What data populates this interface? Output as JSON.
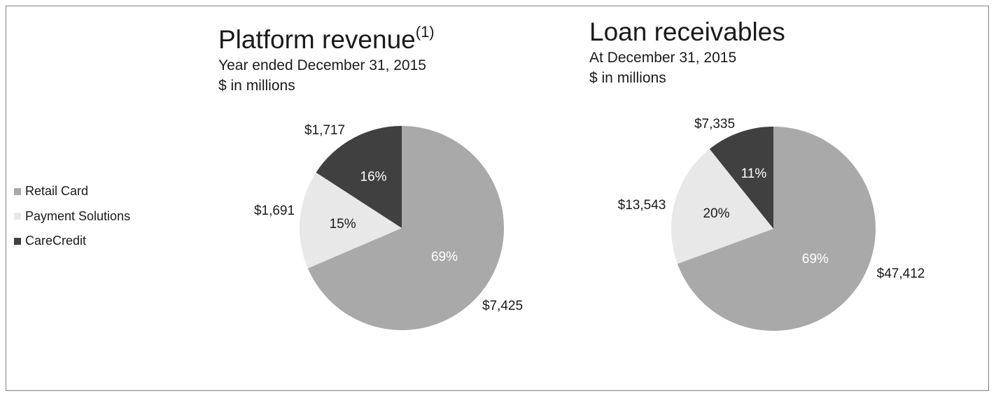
{
  "colors": {
    "retail_card": "#a9a9a9",
    "payment_solutions": "#e8e8e8",
    "carecredit": "#404040"
  },
  "legend": [
    {
      "label": "Retail Card",
      "color": "#a9a9a9"
    },
    {
      "label": "Payment Solutions",
      "color": "#e8e8e8"
    },
    {
      "label": "CareCredit",
      "color": "#404040"
    }
  ],
  "chart_data": [
    {
      "type": "pie",
      "title": "Platform revenue",
      "title_sup": "(1)",
      "subtitle": "Year ended December 31, 2015",
      "units": "$ in millions",
      "slices": [
        {
          "name": "Retail Card",
          "value": 7425,
          "value_label": "$7,425",
          "pct_label": "69%",
          "color": "#a9a9a9"
        },
        {
          "name": "Payment Solutions",
          "value": 1691,
          "value_label": "$1,691",
          "pct_label": "15%",
          "color": "#e8e8e8"
        },
        {
          "name": "CareCredit",
          "value": 1717,
          "value_label": "$1,717",
          "pct_label": "16%",
          "color": "#404040"
        }
      ]
    },
    {
      "type": "pie",
      "title": "Loan receivables",
      "subtitle": "At December 31, 2015",
      "units": "$ in millions",
      "slices": [
        {
          "name": "Retail Card",
          "value": 47412,
          "value_label": "$47,412",
          "pct_label": "69%",
          "color": "#a9a9a9"
        },
        {
          "name": "Payment Solutions",
          "value": 13543,
          "value_label": "$13,543",
          "pct_label": "20%",
          "color": "#e8e8e8"
        },
        {
          "name": "CareCredit",
          "value": 7335,
          "value_label": "$7,335",
          "pct_label": "11%",
          "color": "#404040"
        }
      ]
    }
  ]
}
